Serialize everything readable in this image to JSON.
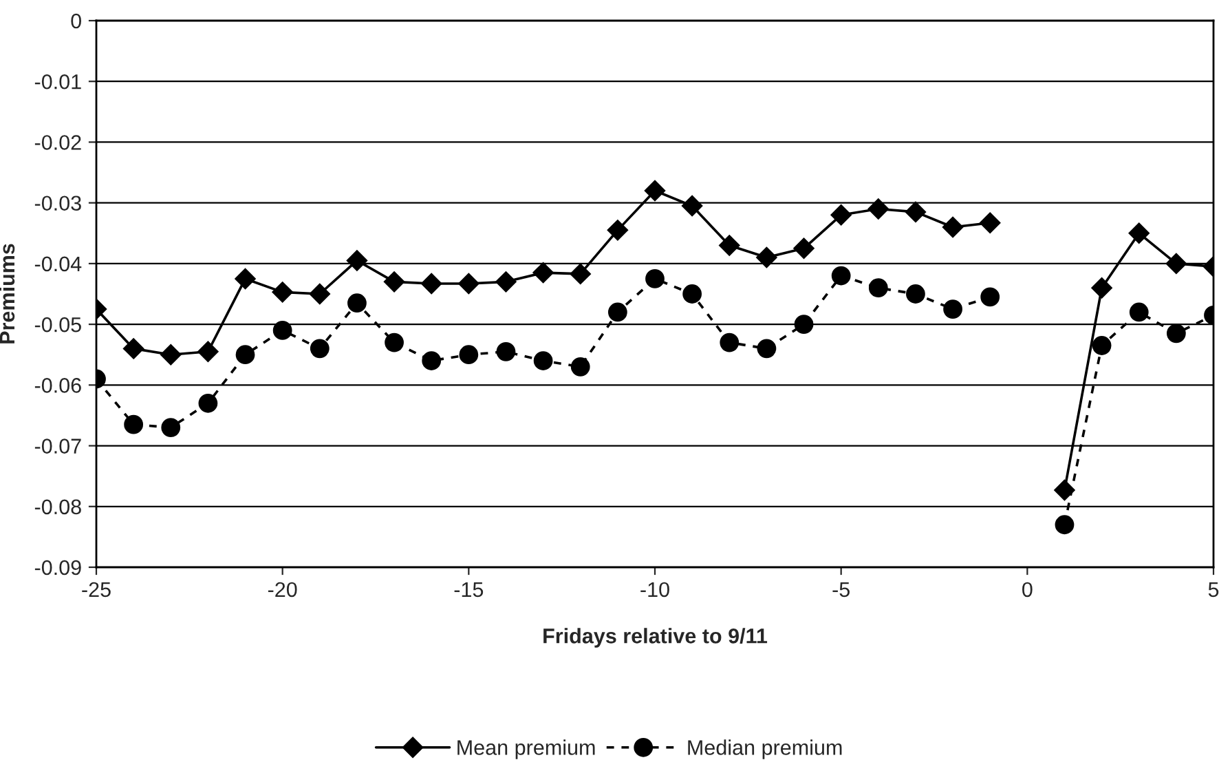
{
  "chart_data": {
    "type": "line",
    "xlabel": "Fridays relative to 9/11",
    "ylabel": "Premiums",
    "x": [
      -25,
      -24,
      -23,
      -22,
      -21,
      -20,
      -19,
      -18,
      -17,
      -16,
      -15,
      -14,
      -13,
      -12,
      -11,
      -10,
      -9,
      -8,
      -7,
      -6,
      -5,
      -4,
      -3,
      -2,
      -1,
      0,
      1,
      2,
      3,
      4,
      5
    ],
    "series": [
      {
        "name": "Mean premium",
        "color": "#000000",
        "marker": "diamond",
        "line_style": "solid",
        "values": [
          -0.0475,
          -0.054,
          -0.055,
          -0.0545,
          -0.0425,
          -0.0447,
          -0.045,
          -0.0395,
          -0.043,
          -0.0433,
          -0.0433,
          -0.043,
          -0.0415,
          -0.0417,
          -0.0345,
          -0.028,
          -0.0305,
          -0.037,
          -0.039,
          -0.0375,
          -0.032,
          -0.031,
          -0.0315,
          -0.034,
          -0.0333,
          null,
          -0.0773,
          -0.044,
          -0.035,
          -0.04,
          -0.0405
        ]
      },
      {
        "name": "Median premium",
        "color": "#000000",
        "marker": "circle",
        "line_style": "dashed",
        "values": [
          -0.059,
          -0.0665,
          -0.067,
          -0.063,
          -0.055,
          -0.051,
          -0.054,
          -0.0465,
          -0.053,
          -0.056,
          -0.055,
          -0.0545,
          -0.056,
          -0.057,
          -0.048,
          -0.0425,
          -0.045,
          -0.053,
          -0.054,
          -0.05,
          -0.042,
          -0.044,
          -0.045,
          -0.0475,
          -0.0455,
          null,
          -0.083,
          -0.0535,
          -0.048,
          -0.0515,
          -0.0485
        ]
      }
    ],
    "xlim": [
      -25,
      5
    ],
    "xticks": [
      -25,
      -20,
      -15,
      -10,
      -5,
      0,
      5
    ],
    "ylim": [
      -0.09,
      0
    ],
    "yticks": [
      -0.09,
      -0.08,
      -0.07,
      -0.06,
      -0.05,
      -0.04,
      -0.03,
      -0.02,
      -0.01,
      0
    ],
    "grid": "y",
    "legend": "bottom"
  }
}
